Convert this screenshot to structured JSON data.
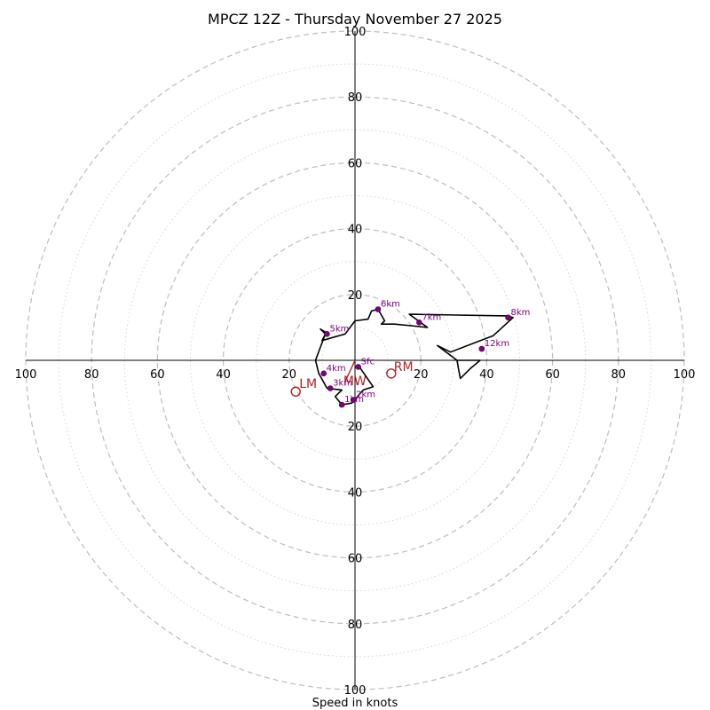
{
  "chart_data": {
    "type": "hodograph",
    "title": "MPCZ 12Z - Thursday November 27 2025",
    "xlabel": "Speed in knots",
    "rings_major": [
      20,
      40,
      60,
      80,
      100
    ],
    "rings_minor": [
      10,
      30,
      50,
      70,
      90
    ],
    "axis_range": [
      -100,
      100
    ],
    "ticks": {
      "x": [
        {
          "value": -100,
          "label": "100"
        },
        {
          "value": -80,
          "label": "80"
        },
        {
          "value": -60,
          "label": "60"
        },
        {
          "value": -40,
          "label": "40"
        },
        {
          "value": -20,
          "label": "20"
        },
        {
          "value": 20,
          "label": "20"
        },
        {
          "value": 40,
          "label": "40"
        },
        {
          "value": 60,
          "label": "60"
        },
        {
          "value": 80,
          "label": "80"
        },
        {
          "value": 100,
          "label": "100"
        }
      ],
      "y": [
        {
          "value": 100,
          "label": "100"
        },
        {
          "value": 80,
          "label": "80"
        },
        {
          "value": 60,
          "label": "60"
        },
        {
          "value": 40,
          "label": "40"
        },
        {
          "value": 20,
          "label": "20"
        },
        {
          "value": -20,
          "label": "20"
        },
        {
          "value": -40,
          "label": "40"
        },
        {
          "value": -60,
          "label": "60"
        },
        {
          "value": -80,
          "label": "80"
        },
        {
          "value": -100,
          "label": "100"
        }
      ]
    },
    "trace": {
      "u": [
        1,
        5.5,
        2.5,
        -1,
        -4,
        -6,
        -4,
        -8.5,
        -11,
        -12,
        -9,
        -8,
        -10.5,
        -9,
        -10,
        -3,
        0,
        4,
        5,
        7,
        9,
        8,
        12,
        17,
        22,
        16.5,
        46,
        48,
        42,
        29,
        25,
        31,
        31.5,
        32,
        35,
        38,
        37.5,
        31
      ],
      "v": [
        -1.5,
        -8,
        -9,
        -13,
        -13.5,
        -11,
        -9,
        -8.5,
        -4,
        0,
        8,
        8,
        9.5,
        8,
        6,
        8,
        12,
        12.5,
        15,
        15.5,
        12,
        11,
        11,
        10.5,
        10,
        14,
        13.5,
        13,
        7.5,
        2.5,
        4.5,
        0,
        -3,
        -5.5,
        -2.5,
        0,
        0,
        0
      ]
    },
    "markers": [
      {
        "label": "Sfc",
        "u": 1,
        "v": -2
      },
      {
        "label": "1km",
        "u": -4,
        "v": -13.5
      },
      {
        "label": "2km",
        "u": -0.5,
        "v": -12
      },
      {
        "label": "3km",
        "u": -7.5,
        "v": -8.5
      },
      {
        "label": "4km",
        "u": -9.5,
        "v": -4
      },
      {
        "label": "5km",
        "u": -8.5,
        "v": 8
      },
      {
        "label": "6km",
        "u": 7,
        "v": 15.5
      },
      {
        "label": "7km",
        "u": 19.5,
        "v": 11.5
      },
      {
        "label": "8km",
        "u": 46.5,
        "v": 13
      },
      {
        "label": "12km",
        "u": 38.5,
        "v": 3.5
      }
    ],
    "storm_motions": [
      {
        "label": "RM",
        "u": 11,
        "v": -4
      },
      {
        "label": "LM",
        "u": -18,
        "v": -9.5
      }
    ],
    "mean_wind": {
      "label": "MW",
      "u": -3,
      "v": -6.5
    }
  },
  "colors": {
    "trace": "#000000",
    "marker": "#800080",
    "storm": "#b22222",
    "ring_major": "#bdbdbd",
    "ring_minor": "#d4d4d4"
  }
}
